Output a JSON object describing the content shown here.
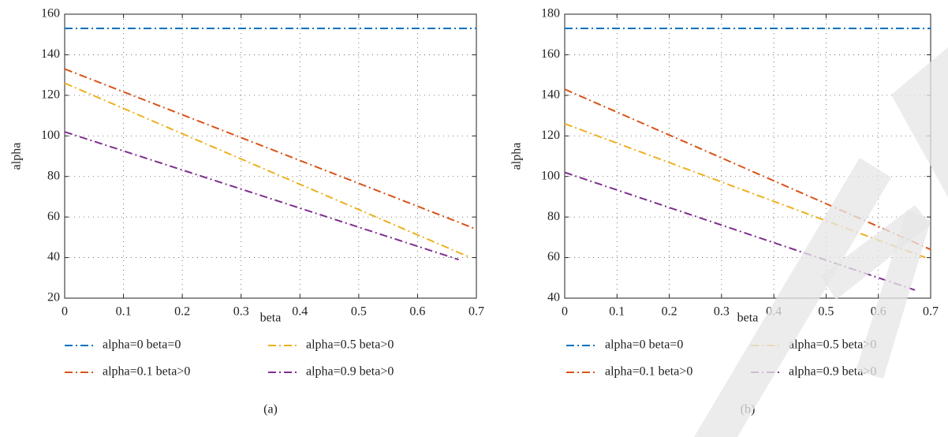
{
  "chart_data": [
    {
      "type": "line",
      "caption": "(a)",
      "x_label": "beta",
      "y_label": "alpha",
      "x": [
        0,
        0.67,
        0.69,
        0.7
      ],
      "xlim": [
        0,
        0.7
      ],
      "xticks": [
        0,
        0.1,
        0.2,
        0.3,
        0.4,
        0.5,
        0.6,
        0.7
      ],
      "ylim": [
        20,
        160
      ],
      "yticks": [
        20,
        40,
        60,
        80,
        100,
        120,
        140,
        160
      ],
      "grid": true,
      "series": [
        {
          "name": "alpha=0 beta=0",
          "color": "#0072bd",
          "values": [
            153,
            153,
            153,
            153
          ]
        },
        {
          "name": "alpha=0.1 beta>0",
          "color": "#d95319",
          "values": [
            133,
            57.4,
            55.1,
            54
          ]
        },
        {
          "name": "alpha=0.5 beta>0",
          "color": "#edb120",
          "values": [
            126,
            42.5,
            40,
            null
          ]
        },
        {
          "name": "alpha=0.9 beta>0",
          "color": "#7e2f8e",
          "values": [
            102,
            39,
            null,
            null
          ]
        }
      ]
    },
    {
      "type": "line",
      "caption": "(b)",
      "x_label": "beta",
      "y_label": "alpha",
      "x": [
        0,
        0.67,
        0.69,
        0.7
      ],
      "xlim": [
        0,
        0.7
      ],
      "xticks": [
        0,
        0.1,
        0.2,
        0.3,
        0.4,
        0.5,
        0.6,
        0.7
      ],
      "ylim": [
        40,
        180
      ],
      "yticks": [
        40,
        60,
        80,
        100,
        120,
        140,
        160,
        180
      ],
      "grid": true,
      "series": [
        {
          "name": "alpha=0 beta=0",
          "color": "#0072bd",
          "values": [
            173,
            173,
            173,
            173
          ]
        },
        {
          "name": "alpha=0.1 beta>0",
          "color": "#d95319",
          "values": [
            143,
            67.4,
            65.1,
            64
          ]
        },
        {
          "name": "alpha=0.5 beta>0",
          "color": "#edb120",
          "values": [
            126,
            61.9,
            60,
            null
          ]
        },
        {
          "name": "alpha=0.9 beta>0",
          "color": "#7e2f8e",
          "values": [
            102,
            44,
            null,
            null
          ]
        }
      ]
    }
  ]
}
